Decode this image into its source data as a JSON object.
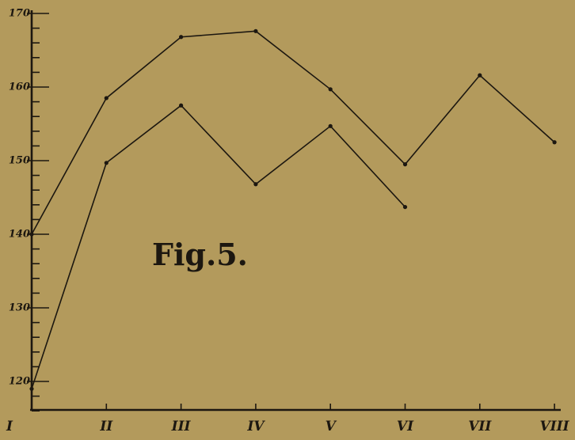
{
  "chart_data": {
    "type": "line",
    "title": "",
    "annotation": "Fig.5.",
    "categories": [
      "I",
      "II",
      "III",
      "IV",
      "V",
      "VI",
      "VII",
      "VIII"
    ],
    "ylim": [
      115,
      170
    ],
    "yticks": [
      120,
      130,
      140,
      150,
      160,
      170
    ],
    "ytick_labels": [
      "120",
      "130",
      "140",
      "150",
      "160",
      "170"
    ],
    "grid": false,
    "series": [
      {
        "values": [
          140,
          158.5,
          166.8,
          167.6,
          159.7,
          149.5,
          161.6,
          152.5
        ]
      },
      {
        "values": [
          119,
          149.7,
          157.5,
          146.8,
          154.7,
          143.7,
          null,
          null
        ]
      }
    ]
  },
  "colors": {
    "background": "#b39a5c",
    "ink": "#1c1710"
  }
}
